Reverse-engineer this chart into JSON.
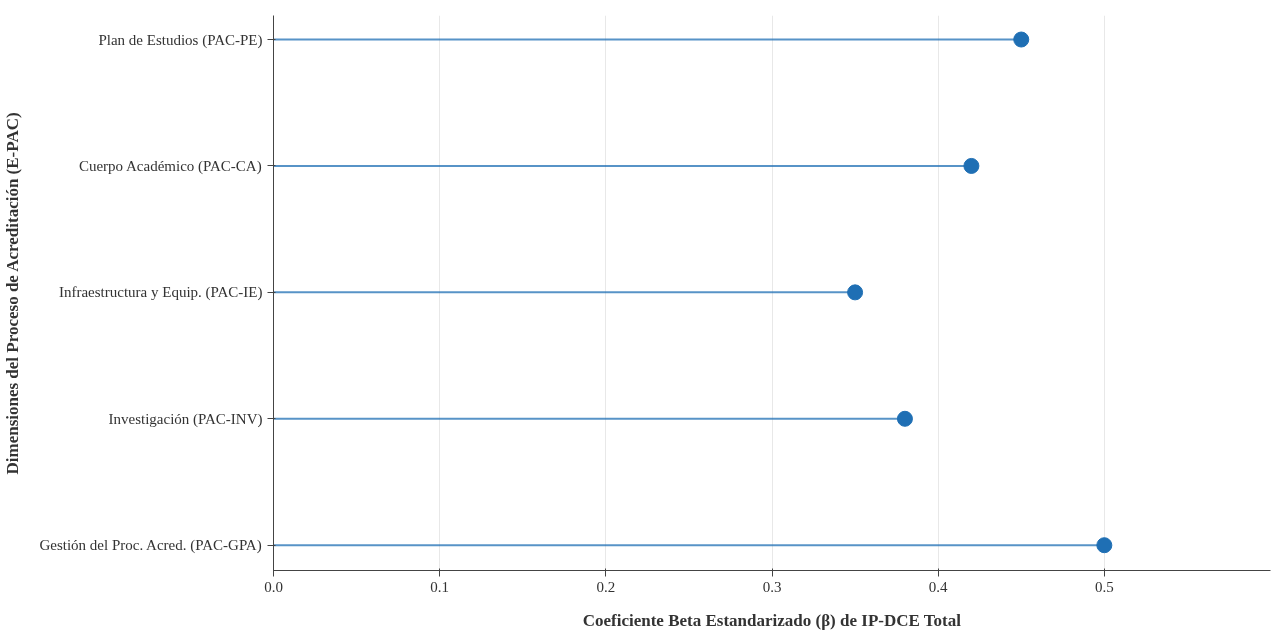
{
  "chart_data": {
    "type": "lollipop",
    "orientation": "horizontal",
    "xlabel": "Coeficiente Beta Estandarizado (β) de IP-DCE Total",
    "ylabel": "Dimensiones del Proceso de Acreditación (E-PAC)",
    "categories": [
      "Plan de Estudios (PAC-PE)",
      "Cuerpo Académico (PAC-CA)",
      "Infraestructura y Equip. (PAC-IE)",
      "Investigación (PAC-INV)",
      "Gestión del Proc. Acred. (PAC-GPA)"
    ],
    "values": [
      0.45,
      0.42,
      0.35,
      0.38,
      0.5
    ],
    "color": "#1f6fb4",
    "xlim": [
      0,
      0.6
    ],
    "xticks": [
      {
        "value": 0,
        "label": "0.0"
      },
      0.1,
      0.2,
      0.3,
      0.4,
      0.5
    ],
    "grid": "x",
    "marker": "circle"
  }
}
